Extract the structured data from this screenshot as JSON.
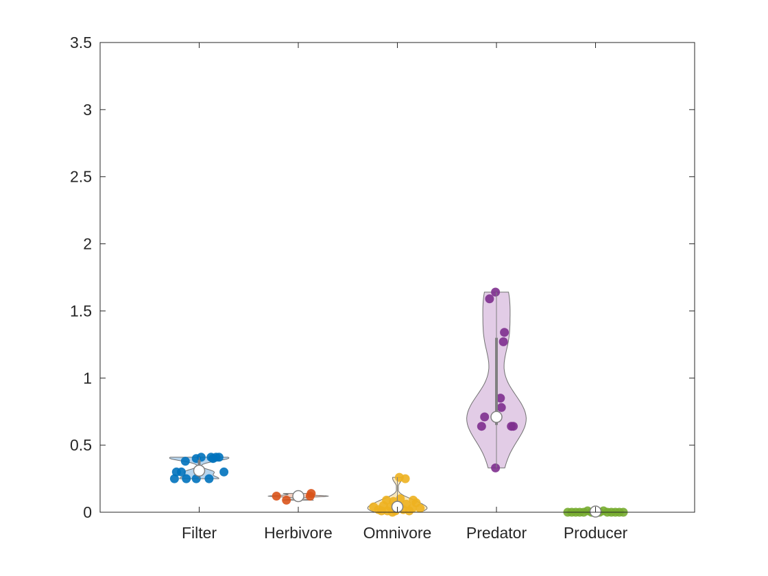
{
  "chart_data": {
    "type": "violin",
    "title": "",
    "xlabel": "",
    "ylabel": "",
    "ylim": [
      0,
      3.5
    ],
    "yticks": [
      0,
      0.5,
      1,
      1.5,
      2,
      2.5,
      3,
      3.5
    ],
    "ytick_labels": [
      "0",
      "0.5",
      "1",
      "1.5",
      "2",
      "2.5",
      "3",
      "3.5"
    ],
    "categories": [
      "Filter",
      "Herbivore",
      "Omnivore",
      "Predator",
      "Producer"
    ],
    "grid": false,
    "legend": "none",
    "series": [
      {
        "category": "Filter",
        "color": "#0072BD",
        "fill": "#A9CCEA",
        "median": 0.31,
        "q1": 0.27,
        "q3": 0.39,
        "min": 0.25,
        "max": 0.41,
        "points": [
          [
            -0.25,
            0.25
          ],
          [
            -0.13,
            0.25
          ],
          [
            -0.03,
            0.25
          ],
          [
            0.1,
            0.25
          ],
          [
            -0.23,
            0.3
          ],
          [
            -0.18,
            0.3
          ],
          [
            0.25,
            0.3
          ],
          [
            -0.14,
            0.38
          ],
          [
            -0.03,
            0.4
          ],
          [
            0.02,
            0.41
          ],
          [
            0.12,
            0.41
          ],
          [
            0.17,
            0.41
          ],
          [
            0.2,
            0.41
          ],
          [
            0.14,
            0.4
          ]
        ]
      },
      {
        "category": "Herbivore",
        "color": "#D95319",
        "fill": "#F3C6B3",
        "median": 0.12,
        "q1": 0.1,
        "q3": 0.13,
        "min": 0.09,
        "max": 0.14,
        "points": [
          [
            -0.22,
            0.12
          ],
          [
            -0.12,
            0.09
          ],
          [
            0.12,
            0.12
          ],
          [
            0.13,
            0.14
          ]
        ]
      },
      {
        "category": "Omnivore",
        "color": "#EDB120",
        "fill": "#F8E3AE",
        "median": 0.04,
        "q1": 0.02,
        "q3": 0.07,
        "min": 0.0,
        "max": 0.26,
        "points": [
          [
            -0.24,
            0.04
          ],
          [
            -0.19,
            0.02
          ],
          [
            -0.14,
            0.05
          ],
          [
            -0.1,
            0.01
          ],
          [
            -0.07,
            0.04
          ],
          [
            -0.04,
            0.08
          ],
          [
            -0.02,
            0.01
          ],
          [
            0.03,
            0.1
          ],
          [
            0.06,
            0.02
          ],
          [
            0.09,
            0.06
          ],
          [
            0.12,
            0.01
          ],
          [
            0.15,
            0.03
          ],
          [
            0.19,
            0.07
          ],
          [
            0.23,
            0.03
          ],
          [
            -0.11,
            0.09
          ],
          [
            0.02,
            0.26
          ],
          [
            0.08,
            0.25
          ],
          [
            -0.05,
            0.0
          ],
          [
            0.16,
            0.09
          ],
          [
            -0.16,
            0.01
          ]
        ]
      },
      {
        "category": "Predator",
        "color": "#7E2F8E",
        "fill": "#DDC3E2",
        "median": 0.71,
        "q1": 0.65,
        "q3": 1.3,
        "min": 0.33,
        "max": 1.64,
        "points": [
          [
            -0.01,
            1.64
          ],
          [
            -0.07,
            1.59
          ],
          [
            0.08,
            1.34
          ],
          [
            0.07,
            1.27
          ],
          [
            0.04,
            0.85
          ],
          [
            0.05,
            0.78
          ],
          [
            -0.12,
            0.71
          ],
          [
            -0.15,
            0.64
          ],
          [
            0.15,
            0.64
          ],
          [
            0.17,
            0.64
          ],
          [
            -0.01,
            0.33
          ]
        ]
      },
      {
        "category": "Producer",
        "color": "#77AC30",
        "fill": "#D4E6BC",
        "median": 0.005,
        "q1": 0.0,
        "q3": 0.01,
        "min": 0.0,
        "max": 0.02,
        "points": [
          [
            -0.28,
            0.0
          ],
          [
            -0.24,
            0.0
          ],
          [
            -0.2,
            0.0
          ],
          [
            -0.16,
            0.0
          ],
          [
            -0.12,
            0.0
          ],
          [
            -0.08,
            0.01
          ],
          [
            -0.04,
            0.0
          ],
          [
            0.04,
            0.0
          ],
          [
            0.08,
            0.01
          ],
          [
            0.12,
            0.0
          ],
          [
            0.16,
            0.0
          ],
          [
            0.2,
            0.0
          ],
          [
            0.24,
            0.0
          ],
          [
            0.28,
            0.0
          ]
        ]
      }
    ]
  }
}
